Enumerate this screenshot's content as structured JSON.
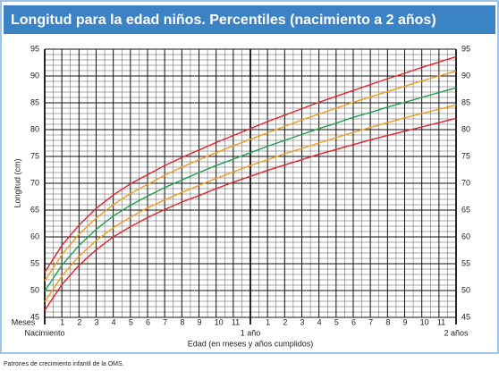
{
  "chart_data": {
    "type": "line",
    "title": "Longitud para la edad niños. Percentiles (nacimiento a 2 años)",
    "y_label": "Longitud (cm)",
    "x_label": "Edad (en meses y años cumplidos)",
    "x_unit_label": "Meses",
    "footer": "Patrones de crecimiento infantil de la OMS.",
    "x": [
      0,
      1,
      2,
      3,
      4,
      5,
      6,
      7,
      8,
      9,
      10,
      11,
      12,
      13,
      14,
      15,
      16,
      17,
      18,
      19,
      20,
      21,
      22,
      23,
      24
    ],
    "series": [
      {
        "color": "#e2232b",
        "values": [
          46.3,
          51.1,
          54.7,
          57.6,
          60.0,
          61.9,
          63.6,
          65.1,
          66.5,
          67.7,
          69.0,
          70.2,
          71.3,
          72.4,
          73.4,
          74.4,
          75.4,
          76.3,
          77.2,
          78.1,
          78.9,
          79.7,
          80.5,
          81.3,
          82.1
        ]
      },
      {
        "color": "#f39a1e",
        "values": [
          47.9,
          52.7,
          56.4,
          59.3,
          61.7,
          63.7,
          65.4,
          66.9,
          68.3,
          69.6,
          70.9,
          72.1,
          73.3,
          74.4,
          75.5,
          76.5,
          77.5,
          78.5,
          79.5,
          80.4,
          81.3,
          82.2,
          83.0,
          83.8,
          84.6
        ]
      },
      {
        "color": "#1ea04f",
        "values": [
          49.9,
          54.7,
          58.4,
          61.4,
          63.9,
          65.9,
          67.6,
          69.2,
          70.6,
          72.0,
          73.3,
          74.5,
          75.7,
          76.9,
          78.0,
          79.1,
          80.2,
          81.2,
          82.3,
          83.2,
          84.2,
          85.1,
          86.0,
          86.9,
          87.8
        ]
      },
      {
        "color": "#f39a1e",
        "values": [
          51.8,
          56.7,
          60.5,
          63.5,
          66.0,
          68.1,
          69.8,
          71.5,
          73.0,
          74.4,
          75.7,
          77.0,
          78.2,
          79.4,
          80.6,
          81.8,
          82.9,
          84.0,
          85.1,
          86.1,
          87.1,
          88.1,
          89.1,
          90.0,
          90.9
        ]
      },
      {
        "color": "#e2232b",
        "values": [
          53.4,
          58.4,
          62.2,
          65.3,
          67.8,
          69.9,
          71.6,
          73.3,
          74.8,
          76.2,
          77.6,
          78.9,
          80.2,
          81.5,
          82.7,
          83.9,
          85.1,
          86.2,
          87.3,
          88.4,
          89.5,
          90.5,
          91.6,
          92.6,
          93.6
        ]
      }
    ],
    "xlim": [
      0,
      24
    ],
    "xticks": [
      {
        "value": 0,
        "label": "Nacimiento"
      },
      {
        "value": 1,
        "label": "1"
      },
      {
        "value": 2,
        "label": "2"
      },
      {
        "value": 3,
        "label": "3"
      },
      {
        "value": 4,
        "label": "4"
      },
      {
        "value": 5,
        "label": "5"
      },
      {
        "value": 6,
        "label": "6"
      },
      {
        "value": 7,
        "label": "7"
      },
      {
        "value": 8,
        "label": "8"
      },
      {
        "value": 9,
        "label": "9"
      },
      {
        "value": 10,
        "label": "10"
      },
      {
        "value": 11,
        "label": "11"
      },
      {
        "value": 12,
        "label": "1 año"
      },
      {
        "value": 13,
        "label": "1"
      },
      {
        "value": 14,
        "label": "2"
      },
      {
        "value": 15,
        "label": "3"
      },
      {
        "value": 16,
        "label": "4"
      },
      {
        "value": 17,
        "label": "5"
      },
      {
        "value": 18,
        "label": "6"
      },
      {
        "value": 19,
        "label": "7"
      },
      {
        "value": 20,
        "label": "8"
      },
      {
        "value": 21,
        "label": "9"
      },
      {
        "value": 22,
        "label": "10"
      },
      {
        "value": 23,
        "label": "11"
      },
      {
        "value": 24,
        "label": "2 años"
      }
    ],
    "ylim": [
      45,
      95
    ],
    "yticks": [
      45,
      50,
      55,
      60,
      65,
      70,
      75,
      80,
      85,
      90,
      95
    ],
    "x_grid_step": 0.5,
    "y_grid_step": 1,
    "grid": true
  }
}
